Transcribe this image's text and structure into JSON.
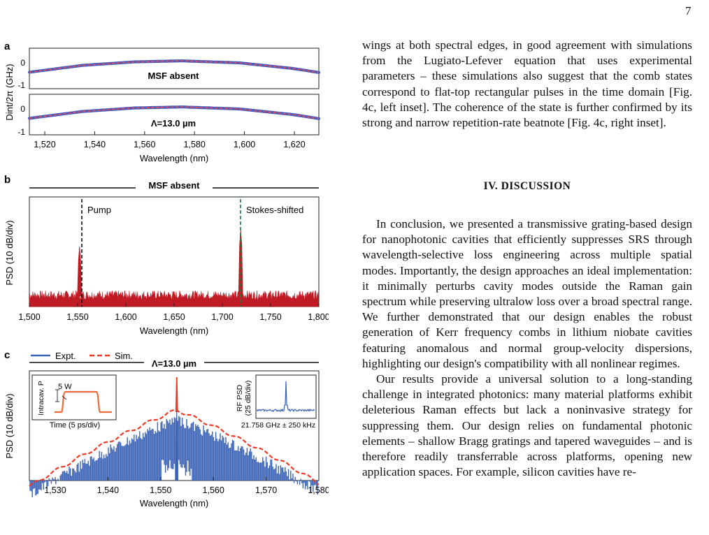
{
  "page_number": "7",
  "figure": {
    "panel_a": {
      "letter": "a",
      "ylabel": "Dint/2π (GHz)",
      "subplots": [
        {
          "label": "MSF absent",
          "yticks": [
            "0",
            "-1"
          ]
        },
        {
          "label": "Λ=13.0 µm",
          "yticks": [
            "0",
            "-1"
          ]
        }
      ],
      "xticks": [
        "1,520",
        "1,540",
        "1,560",
        "1,580",
        "1,600",
        "1,620"
      ],
      "xlabel": "Wavelength (nm)"
    },
    "panel_b": {
      "letter": "b",
      "header": "MSF absent",
      "ylabel": "PSD (10 dB/div)",
      "annotations": [
        "Pump",
        "Stokes-shifted"
      ],
      "xticks": [
        "1,500",
        "1,550",
        "1,600",
        "1,650",
        "1,700",
        "1,750",
        "1,800"
      ],
      "xlabel": "Wavelength (nm)"
    },
    "panel_c": {
      "letter": "c",
      "legend": [
        "Expt.",
        "Sim."
      ],
      "header": "Λ=13.0 µm",
      "ylabel": "PSD (10 dB/div)",
      "inset_left": {
        "ylabel": "Intracav. P",
        "xlabel": "Time (5 ps/div)",
        "scale": "5 W"
      },
      "inset_right": {
        "ylabel1": "RF PSD",
        "ylabel2": "(25 dB/div)",
        "xlabel": "21.758 GHz ± 250 kHz"
      },
      "xticks": [
        "1,530",
        "1,540",
        "1,550",
        "1,560",
        "1,570",
        "1,580"
      ],
      "xlabel": "Wavelength (nm)"
    },
    "colors": {
      "expt": "#3a62b6",
      "sim": "#ee3b24",
      "psd": "#c01a24",
      "pump_line": "#111111",
      "stokes_line": "#1f7a3a",
      "dint_dots": "#4a5cb8",
      "dint_fit": "#e8485a"
    }
  },
  "chart_data": [
    {
      "type": "line",
      "title": "MSF absent",
      "xlabel": "Wavelength (nm)",
      "ylabel": "Dint/2π (GHz)",
      "xlim": [
        1510,
        1620
      ],
      "ylim": [
        -1.1,
        0.5
      ],
      "series": [
        {
          "name": "MSF absent",
          "x": [
            1510,
            1530,
            1550,
            1568,
            1590,
            1610,
            1620
          ],
          "values": [
            -0.45,
            -0.18,
            -0.04,
            0.0,
            -0.08,
            -0.3,
            -0.46
          ]
        }
      ]
    },
    {
      "type": "line",
      "title": "Λ=13.0 µm",
      "xlabel": "Wavelength (nm)",
      "ylabel": "Dint/2π (GHz)",
      "xlim": [
        1510,
        1620
      ],
      "ylim": [
        -1.1,
        0.5
      ],
      "series": [
        {
          "name": "Λ=13.0 µm",
          "x": [
            1510,
            1530,
            1550,
            1568,
            1590,
            1610,
            1620
          ],
          "values": [
            -0.45,
            -0.18,
            -0.04,
            0.0,
            -0.08,
            -0.3,
            -0.46
          ]
        }
      ]
    },
    {
      "type": "line",
      "title": "MSF absent",
      "xlabel": "Wavelength (nm)",
      "ylabel": "PSD (10 dB/div)",
      "xlim": [
        1500,
        1800
      ],
      "peaks": [
        {
          "label": "Pump",
          "x": 1552
        },
        {
          "label": "Stokes-shifted",
          "x": 1719
        }
      ]
    },
    {
      "type": "line",
      "title": "Λ=13.0 µm",
      "xlabel": "Wavelength (nm)",
      "ylabel": "PSD (10 dB/div)",
      "xlim": [
        1525,
        1580
      ],
      "series": [
        {
          "name": "Expt."
        },
        {
          "name": "Sim."
        }
      ],
      "center": 1553
    }
  ],
  "text": {
    "p1": "wings at both spectral edges, in good agreement with simulations from the Lugiato-Lefever equation that uses experimental parameters – these simulations also suggest that the comb states correspond to flat-top rectangular pulses in the time domain [Fig. 4c, left inset]. The coherence of the state is further confirmed by its strong and narrow repetition-rate beatnote [Fig. 4c, right inset].",
    "heading": "IV.   DISCUSSION",
    "p2": "In conclusion, we presented a transmissive grating-based design for nanophotonic cavities that efficiently suppresses SRS through wavelength-selective loss engineering across multiple spatial modes. Importantly, the design approaches an ideal implementation: it minimally perturbs cavity modes outside the Raman gain spectrum while preserving ultralow loss over a broad spectral range. We further demonstrated that our design enables the robust generation of Kerr frequency combs in lithium niobate cavities featuring anomalous and normal group-velocity dispersions, highlighting our design's compatibility with all nonlinear regimes.",
    "p3": "Our results provide a universal solution to a long-standing challenge in integrated photonics: many material platforms exhibit deleterious Raman effects but lack a noninvasive strategy for suppressing them. Our design relies on fundamental photonic elements – shallow Bragg gratings and tapered waveguides – and is therefore readily transferrable across platforms, opening new application spaces. For example, silicon cavities have re-"
  }
}
